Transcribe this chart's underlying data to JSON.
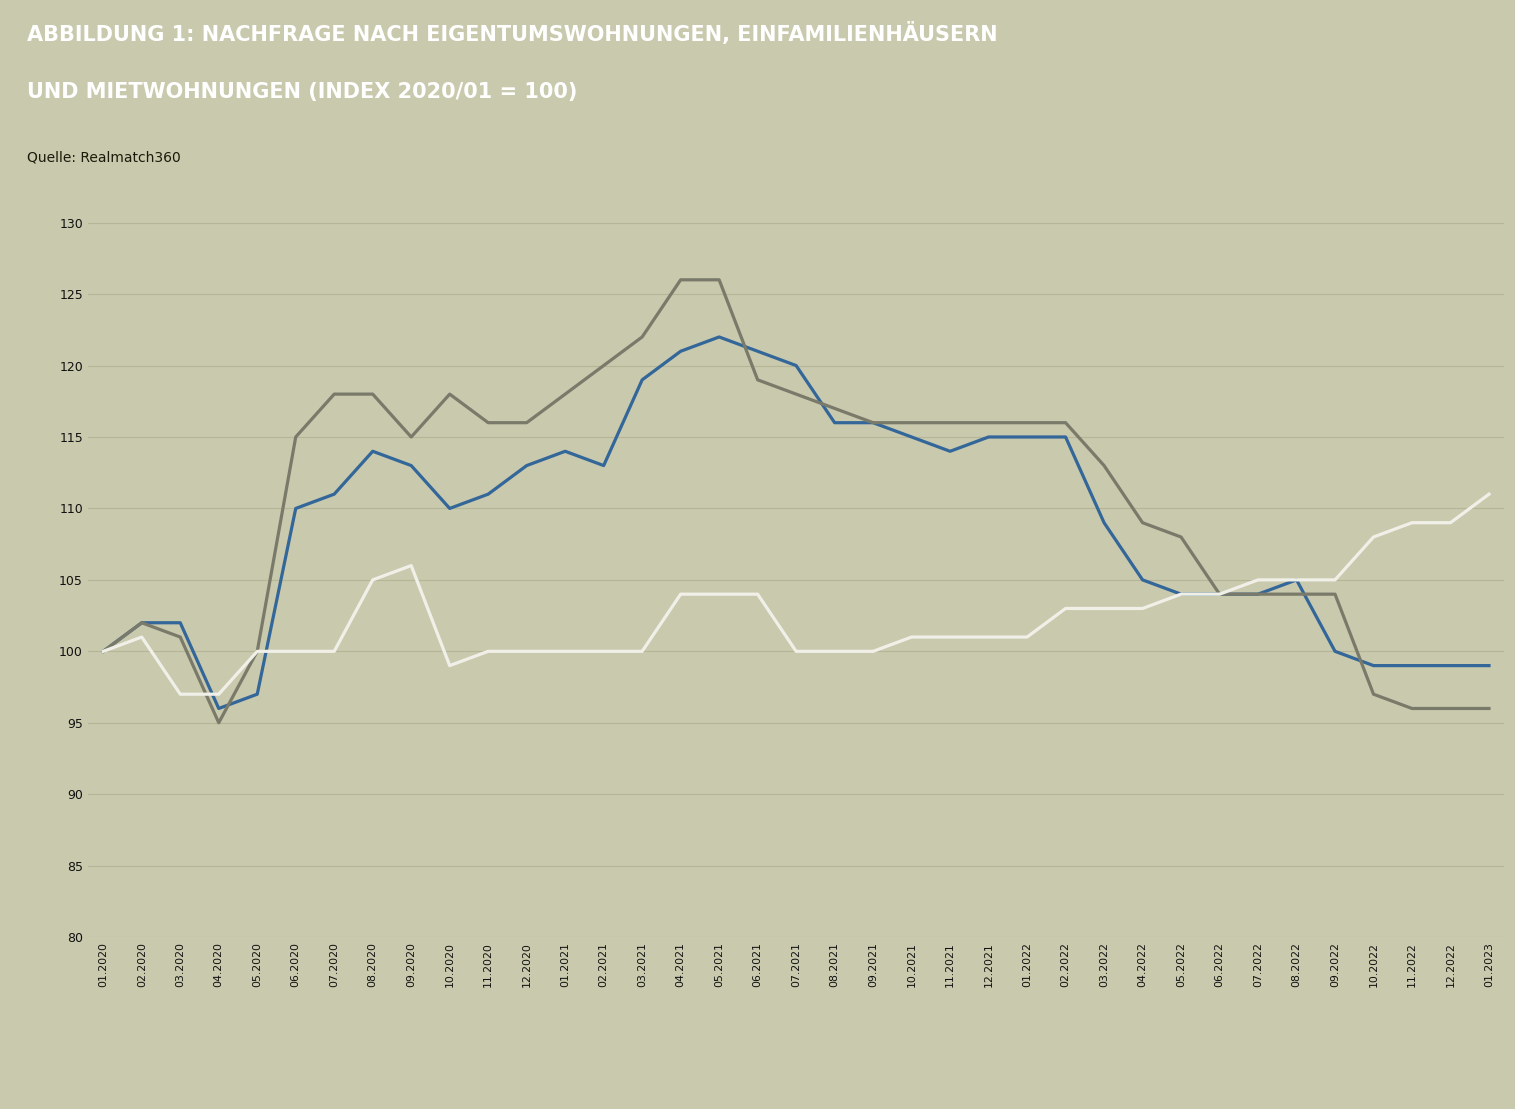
{
  "title_line1": "ABBILDUNG 1: NACHFRAGE NACH EIGENTUMSWOHNUNGEN, EINFAMILIENHÄUSERN",
  "title_line2": "UND MIETWOHNUNGEN (INDEX 2020/01 = 100)",
  "source": "Quelle: Realmatch360",
  "background_header": "#9c9c7d",
  "background_chart": "#c9c9ad",
  "grid_color": "#b5b598",
  "x_labels": [
    "01.2020",
    "02.2020",
    "03.2020",
    "04.2020",
    "05.2020",
    "06.2020",
    "07.2020",
    "08.2020",
    "09.2020",
    "10.2020",
    "11.2020",
    "12.2020",
    "01.2021",
    "02.2021",
    "03.2021",
    "04.2021",
    "05.2021",
    "06.2021",
    "07.2021",
    "08.2021",
    "09.2021",
    "10.2021",
    "11.2021",
    "12.2021",
    "01.2022",
    "02.2022",
    "03.2022",
    "04.2022",
    "05.2022",
    "06.2022",
    "07.2022",
    "08.2022",
    "09.2022",
    "10.2022",
    "11.2022",
    "12.2022",
    "01.2023"
  ],
  "eigentumswohnungen": [
    100,
    102,
    102,
    96,
    97,
    110,
    111,
    114,
    113,
    110,
    111,
    113,
    114,
    113,
    119,
    121,
    122,
    121,
    120,
    116,
    116,
    115,
    114,
    115,
    115,
    115,
    109,
    105,
    104,
    104,
    104,
    105,
    100,
    99,
    99,
    99,
    99
  ],
  "einfamilienhauser": [
    100,
    102,
    101,
    95,
    100,
    115,
    118,
    118,
    115,
    118,
    116,
    116,
    118,
    120,
    122,
    126,
    126,
    119,
    118,
    117,
    116,
    116,
    116,
    116,
    116,
    116,
    113,
    109,
    108,
    104,
    104,
    104,
    104,
    97,
    96,
    96,
    96
  ],
  "mietwohnungen": [
    100,
    101,
    97,
    97,
    100,
    100,
    100,
    105,
    106,
    99,
    100,
    100,
    100,
    100,
    100,
    104,
    104,
    104,
    100,
    100,
    100,
    101,
    101,
    101,
    101,
    103,
    103,
    103,
    104,
    104,
    105,
    105,
    105,
    108,
    109,
    109,
    111
  ],
  "ylim": [
    80,
    132
  ],
  "yticks": [
    80,
    85,
    90,
    95,
    100,
    105,
    110,
    115,
    120,
    125,
    130
  ],
  "color_eigen": "#336699",
  "color_einfam": "#7a7a6a",
  "color_miet": "#f0f0e8",
  "legend_eigen": "Eigentumswohnungen",
  "legend_einfam": "Einfamilienhäuser",
  "legend_miet": "Mietwohnungen",
  "linewidth": 2.3,
  "title_fontsize": 15,
  "source_fontsize": 10,
  "tick_fontsize": 9,
  "legend_fontsize": 11
}
